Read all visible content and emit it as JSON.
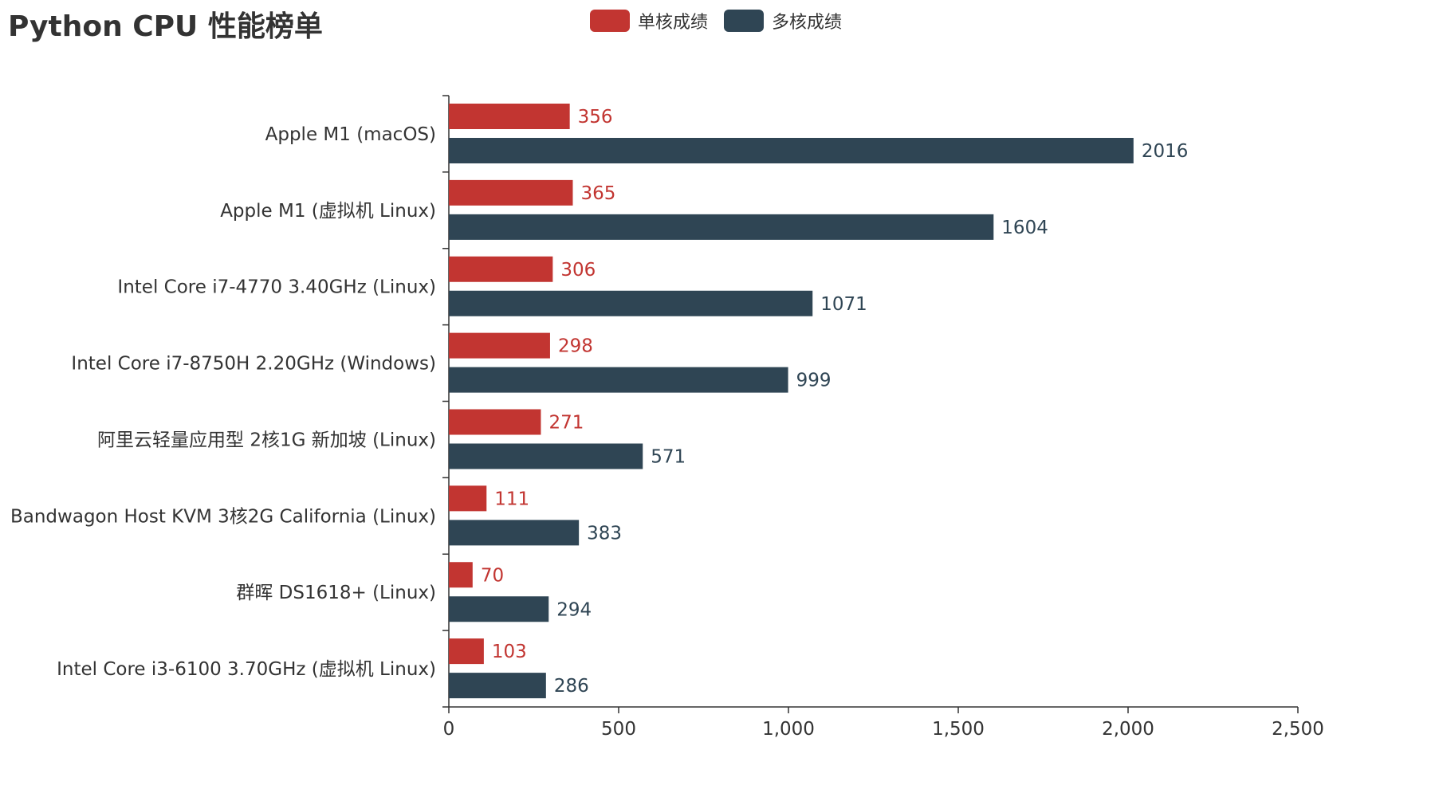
{
  "chart_data": {
    "type": "bar",
    "orientation": "horizontal",
    "title": "Python CPU 性能榜单",
    "categories": [
      "Apple M1 (macOS)",
      "Apple M1 (虚拟机 Linux)",
      "Intel Core i7-4770 3.40GHz (Linux)",
      "Intel Core i7-8750H 2.20GHz (Windows)",
      "阿里云轻量应用型 2核1G 新加坡 (Linux)",
      "Bandwagon Host KVM 3核2G California (Linux)",
      "群晖 DS1618+ (Linux)",
      "Intel Core i3-6100 3.70GHz (虚拟机 Linux)"
    ],
    "series": [
      {
        "name": "单核成绩",
        "color": "#c23531",
        "values": [
          356,
          365,
          306,
          298,
          271,
          111,
          70,
          103
        ]
      },
      {
        "name": "多核成绩",
        "color": "#2f4554",
        "values": [
          2016,
          1604,
          1071,
          999,
          571,
          383,
          294,
          286
        ]
      }
    ],
    "xlim": [
      0,
      2500
    ],
    "xticks": [
      0,
      500,
      1000,
      1500,
      2000,
      2500
    ],
    "xtick_labels": [
      "0",
      "500",
      "1,000",
      "1,500",
      "2,000",
      "2,500"
    ],
    "grid": false,
    "legend_position": "top-center",
    "data_labels": true
  }
}
